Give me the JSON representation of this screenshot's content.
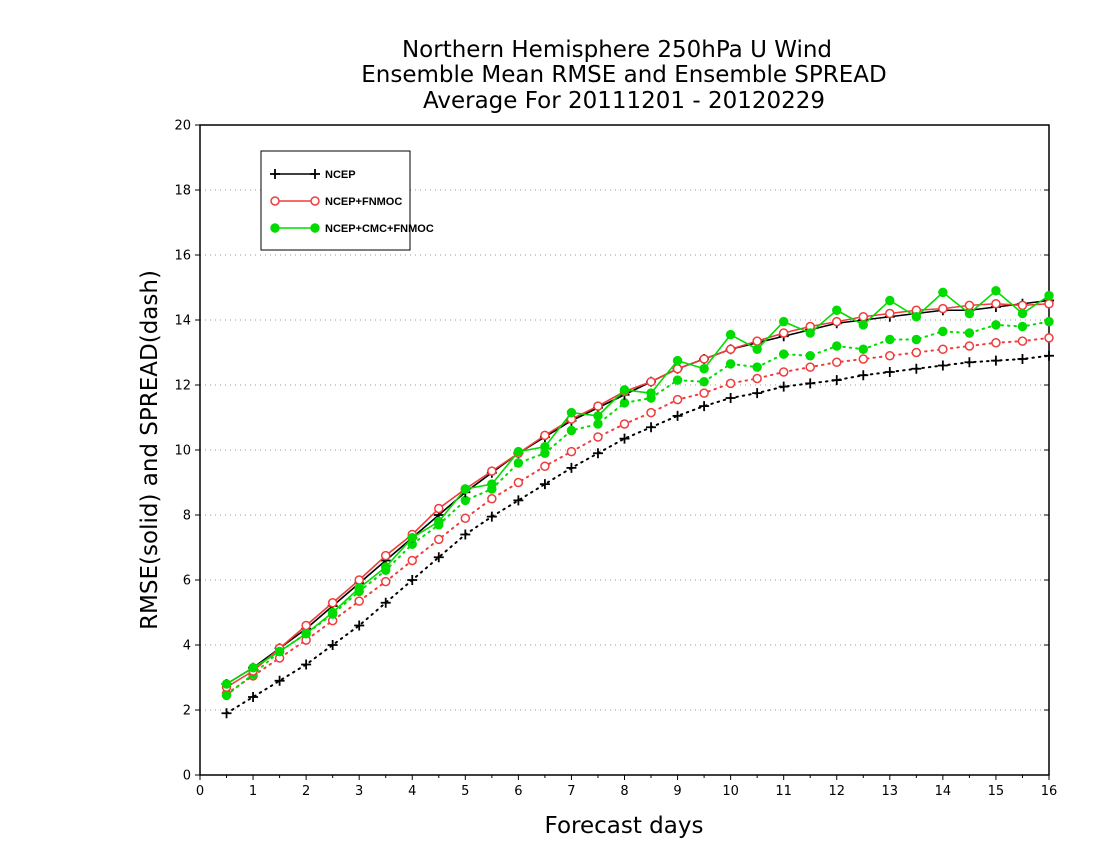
{
  "chart_data": {
    "type": "line",
    "title": [
      "Northern Hemisphere 250hPa U Wind",
      "Ensemble Mean RMSE and Ensemble SPREAD",
      "Average For 20111201 - 20120229"
    ],
    "xlabel": "Forecast days",
    "ylabel": "RMSE(solid) and SPREAD(dash)",
    "xlim": [
      0,
      16
    ],
    "ylim": [
      0,
      20
    ],
    "xticks": [
      0,
      1,
      2,
      3,
      4,
      5,
      6,
      7,
      8,
      9,
      10,
      11,
      12,
      13,
      14,
      15,
      16
    ],
    "yticks": [
      0,
      2,
      4,
      6,
      8,
      10,
      12,
      14,
      16,
      18,
      20
    ],
    "grid": "horizontal dotted",
    "legend_position": "top-left",
    "x": [
      0.5,
      1,
      1.5,
      2,
      2.5,
      3,
      3.5,
      4,
      4.5,
      5,
      5.5,
      6,
      6.5,
      7,
      7.5,
      8,
      8.5,
      9,
      9.5,
      10,
      10.5,
      11,
      11.5,
      12,
      12.5,
      13,
      13.5,
      14,
      14.5,
      15,
      15.5,
      16
    ],
    "series": [
      {
        "name": "NCEP",
        "color": "#000000",
        "marker": "plus",
        "rmse": [
          2.8,
          3.3,
          3.9,
          4.5,
          5.2,
          5.9,
          6.6,
          7.3,
          8.0,
          8.7,
          9.3,
          9.9,
          10.4,
          10.9,
          11.3,
          11.7,
          12.1,
          12.5,
          12.8,
          13.1,
          13.3,
          13.5,
          13.7,
          13.9,
          14.0,
          14.1,
          14.2,
          14.3,
          14.3,
          14.4,
          14.5,
          14.6
        ],
        "spread": [
          1.9,
          2.4,
          2.9,
          3.4,
          4.0,
          4.6,
          5.3,
          6.0,
          6.7,
          7.4,
          7.95,
          8.45,
          8.95,
          9.45,
          9.9,
          10.35,
          10.7,
          11.05,
          11.35,
          11.6,
          11.75,
          11.95,
          12.05,
          12.15,
          12.3,
          12.4,
          12.5,
          12.6,
          12.7,
          12.75,
          12.8,
          12.9
        ]
      },
      {
        "name": "NCEP+FNMOC",
        "color": "#f03c3c",
        "marker": "open-circle",
        "rmse": [
          2.7,
          3.2,
          3.9,
          4.6,
          5.3,
          6.0,
          6.75,
          7.4,
          8.2,
          8.8,
          9.35,
          9.9,
          10.45,
          10.95,
          11.35,
          11.8,
          12.1,
          12.5,
          12.8,
          13.1,
          13.35,
          13.6,
          13.8,
          13.95,
          14.1,
          14.2,
          14.3,
          14.35,
          14.45,
          14.5,
          14.45,
          14.5
        ],
        "spread": [
          2.5,
          3.05,
          3.6,
          4.15,
          4.75,
          5.35,
          5.95,
          6.6,
          7.25,
          7.9,
          8.5,
          9.0,
          9.5,
          9.95,
          10.4,
          10.8,
          11.15,
          11.55,
          11.75,
          12.05,
          12.2,
          12.4,
          12.55,
          12.7,
          12.8,
          12.9,
          13.0,
          13.1,
          13.2,
          13.3,
          13.35,
          13.45
        ]
      },
      {
        "name": "NCEP+CMC+FNMOC",
        "color": "#00dc00",
        "marker": "filled-circle",
        "rmse": [
          2.8,
          3.3,
          3.8,
          4.35,
          5.0,
          5.75,
          6.4,
          7.3,
          7.8,
          8.8,
          8.95,
          9.95,
          10.1,
          11.15,
          11.05,
          11.85,
          11.75,
          12.75,
          12.5,
          13.55,
          13.1,
          13.95,
          13.6,
          14.3,
          13.85,
          14.6,
          14.1,
          14.85,
          14.2,
          14.9,
          14.2,
          14.75
        ],
        "spread": [
          2.45,
          3.1,
          3.8,
          4.35,
          4.95,
          5.65,
          6.3,
          7.1,
          7.7,
          8.45,
          8.8,
          9.6,
          9.9,
          10.6,
          10.8,
          11.45,
          11.6,
          12.15,
          12.1,
          12.65,
          12.55,
          12.95,
          12.9,
          13.2,
          13.1,
          13.4,
          13.4,
          13.65,
          13.6,
          13.85,
          13.8,
          13.95
        ]
      }
    ]
  }
}
